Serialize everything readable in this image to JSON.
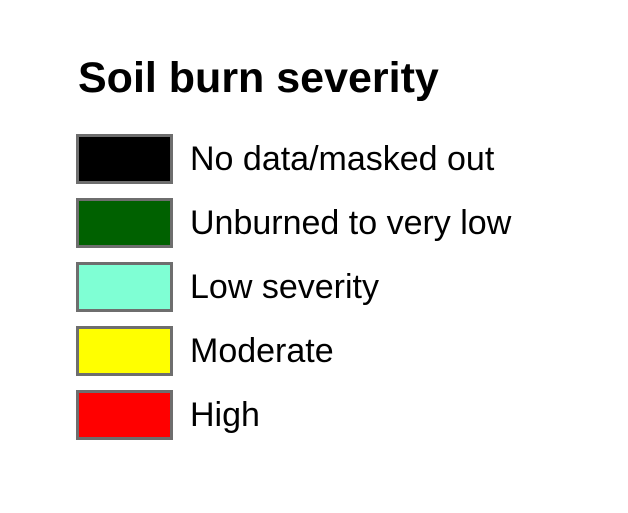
{
  "legend": {
    "title": "Soil burn severity",
    "swatch_border_color": "#6e6e6e",
    "items": [
      {
        "label": "No data/masked out",
        "color": "#000000"
      },
      {
        "label": "Unburned to very low",
        "color": "#006100"
      },
      {
        "label": "Low severity",
        "color": "#7fffd4"
      },
      {
        "label": "Moderate",
        "color": "#ffff00"
      },
      {
        "label": "High",
        "color": "#ff0000"
      }
    ]
  }
}
